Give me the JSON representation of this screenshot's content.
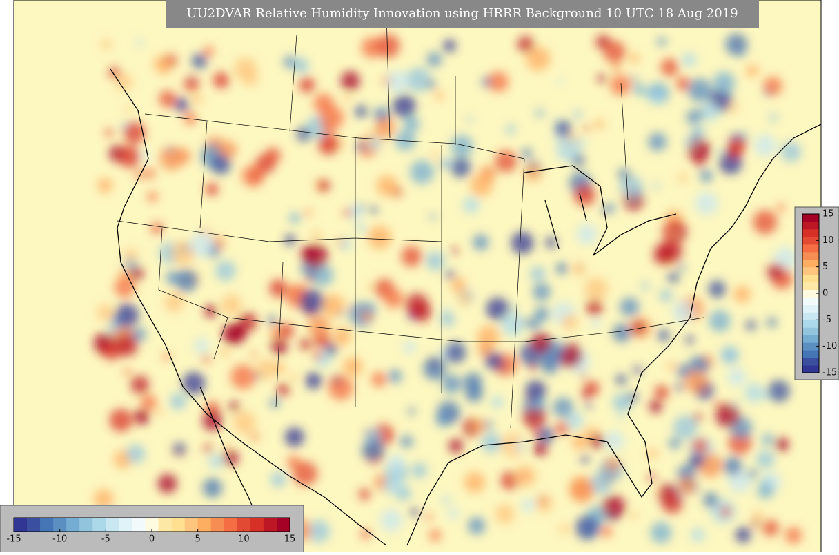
{
  "title": "UU2DVAR Relative Humidity Innovation using HRRR Background 10 UTC 18 Aug 2019",
  "colormap": [
    "#313695",
    "#3a4f9f",
    "#4575b4",
    "#5b8ec1",
    "#74add1",
    "#93c4de",
    "#abd9e9",
    "#c9e7f0",
    "#e0f3f8",
    "#f3fafb",
    "#fffbe0",
    "#fee8a6",
    "#fee090",
    "#fdc57d",
    "#fdae61",
    "#f68d52",
    "#f46d43",
    "#e34a33",
    "#d73027",
    "#bd1726",
    "#a50026"
  ],
  "colorbar_vertical": {
    "lim": [
      -15,
      15
    ],
    "ticks": [
      15,
      10,
      5,
      0,
      -5,
      -10,
      -15
    ]
  },
  "colorbar_horizontal": {
    "lim": [
      -15,
      15
    ],
    "ticks": [
      -15,
      -10,
      -5,
      0,
      5,
      10,
      15
    ]
  }
}
